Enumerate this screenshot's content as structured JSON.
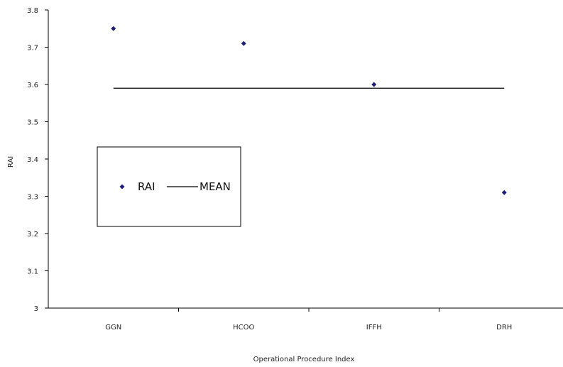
{
  "chart_data": {
    "type": "scatter",
    "categories": [
      "GGN",
      "HCOO",
      "IFFH",
      "DRH"
    ],
    "series": [
      {
        "name": "RAI",
        "kind": "scatter",
        "marker": "diamond",
        "color": "#1f1f7a",
        "values": [
          3.75,
          3.71,
          3.6,
          3.31
        ]
      },
      {
        "name": "MEAN",
        "kind": "line",
        "color": "#000000",
        "value": 3.59
      }
    ],
    "xlabel": "Operational Procedure Index",
    "ylabel": "RAI",
    "ylim": [
      3.0,
      3.8
    ],
    "yticks": [
      "3",
      "3.1",
      "3.2",
      "3.3",
      "3.4",
      "3.5",
      "3.6",
      "3.7",
      "3.8"
    ],
    "grid": false,
    "legend": {
      "position": "center-left",
      "entries": [
        "RAI",
        "MEAN"
      ]
    }
  }
}
